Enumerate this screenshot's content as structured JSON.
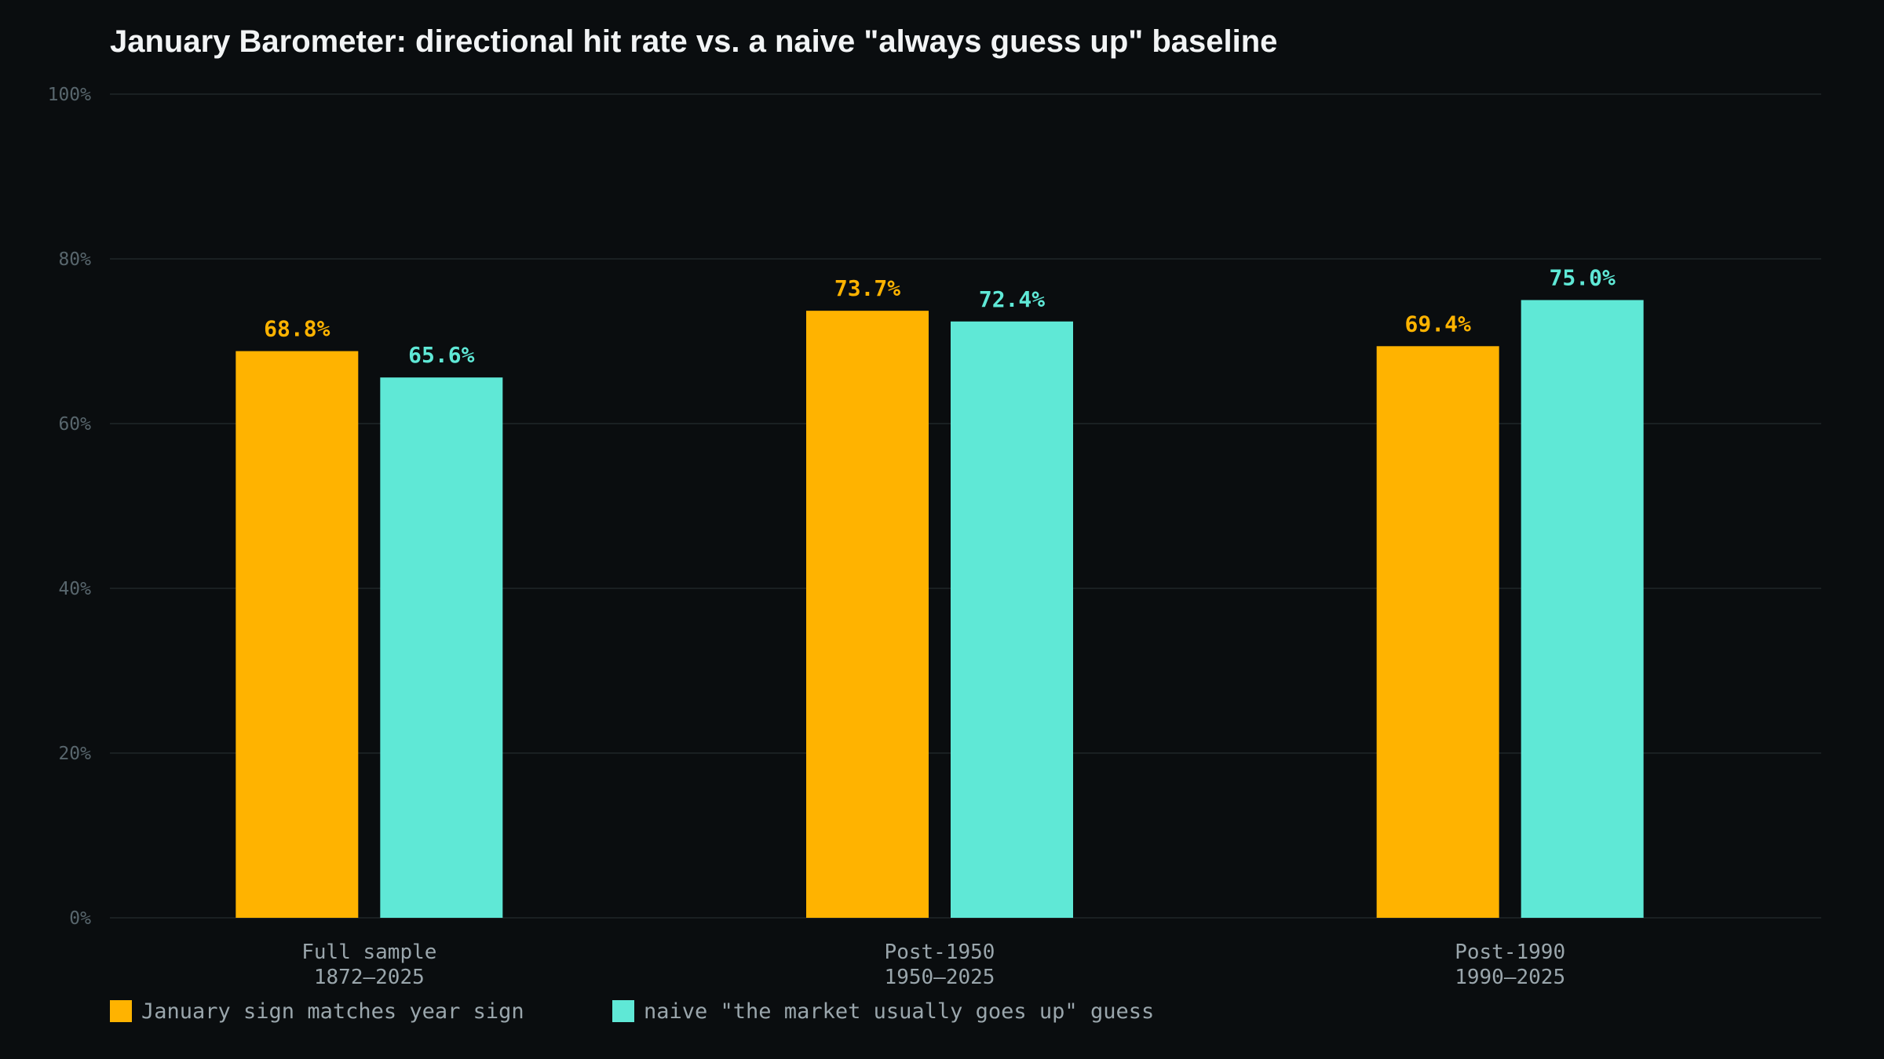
{
  "chart_data": {
    "type": "bar",
    "title": "January Barometer: directional hit rate vs. a naive \"always guess up\" baseline",
    "categories": [
      {
        "line1": "Full sample",
        "line2": "1872–2025"
      },
      {
        "line1": "Post-1950",
        "line2": "1950–2025"
      },
      {
        "line1": "Post-1990",
        "line2": "1990–2025"
      }
    ],
    "series": [
      {
        "name": "January sign matches year sign",
        "color": "#ffb300",
        "values": [
          68.8,
          73.7,
          69.4
        ],
        "labels": [
          "68.8%",
          "73.7%",
          "69.4%"
        ]
      },
      {
        "name": "naive \"the market usually goes up\" guess",
        "color": "#5fe8d6",
        "values": [
          65.6,
          72.4,
          75.0
        ],
        "labels": [
          "65.6%",
          "72.4%",
          "75.0%"
        ]
      }
    ],
    "ylim": [
      0,
      100
    ],
    "yticks": [
      0,
      20,
      40,
      60,
      80,
      100
    ],
    "ytick_labels": [
      "0%",
      "20%",
      "40%",
      "60%",
      "80%",
      "100%"
    ],
    "xlabel": "",
    "ylabel": "",
    "grid": true,
    "legend_position": "bottom-left"
  }
}
